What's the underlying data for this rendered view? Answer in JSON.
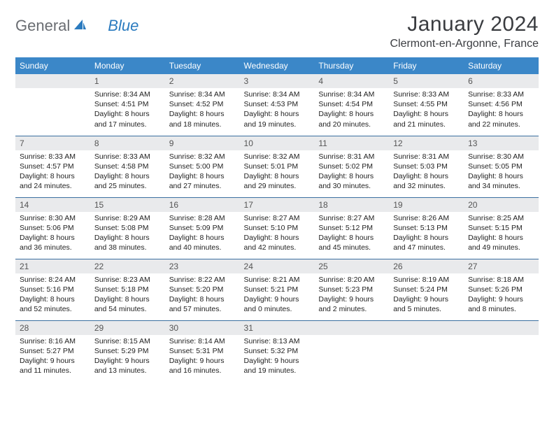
{
  "logo": {
    "word1": "General",
    "word2": "Blue"
  },
  "title": "January 2024",
  "location": "Clermont-en-Argonne, France",
  "colors": {
    "header_bg": "#3b87c8",
    "header_fg": "#ffffff",
    "daynum_bg": "#e9eaec",
    "row_border": "#3b6fa0",
    "logo_gray": "#6a6d72",
    "logo_blue": "#2b7bbf"
  },
  "day_headers": [
    "Sunday",
    "Monday",
    "Tuesday",
    "Wednesday",
    "Thursday",
    "Friday",
    "Saturday"
  ],
  "weeks": [
    [
      {
        "num": "",
        "lines": []
      },
      {
        "num": "1",
        "lines": [
          "Sunrise: 8:34 AM",
          "Sunset: 4:51 PM",
          "Daylight: 8 hours",
          "and 17 minutes."
        ]
      },
      {
        "num": "2",
        "lines": [
          "Sunrise: 8:34 AM",
          "Sunset: 4:52 PM",
          "Daylight: 8 hours",
          "and 18 minutes."
        ]
      },
      {
        "num": "3",
        "lines": [
          "Sunrise: 8:34 AM",
          "Sunset: 4:53 PM",
          "Daylight: 8 hours",
          "and 19 minutes."
        ]
      },
      {
        "num": "4",
        "lines": [
          "Sunrise: 8:34 AM",
          "Sunset: 4:54 PM",
          "Daylight: 8 hours",
          "and 20 minutes."
        ]
      },
      {
        "num": "5",
        "lines": [
          "Sunrise: 8:33 AM",
          "Sunset: 4:55 PM",
          "Daylight: 8 hours",
          "and 21 minutes."
        ]
      },
      {
        "num": "6",
        "lines": [
          "Sunrise: 8:33 AM",
          "Sunset: 4:56 PM",
          "Daylight: 8 hours",
          "and 22 minutes."
        ]
      }
    ],
    [
      {
        "num": "7",
        "lines": [
          "Sunrise: 8:33 AM",
          "Sunset: 4:57 PM",
          "Daylight: 8 hours",
          "and 24 minutes."
        ]
      },
      {
        "num": "8",
        "lines": [
          "Sunrise: 8:33 AM",
          "Sunset: 4:58 PM",
          "Daylight: 8 hours",
          "and 25 minutes."
        ]
      },
      {
        "num": "9",
        "lines": [
          "Sunrise: 8:32 AM",
          "Sunset: 5:00 PM",
          "Daylight: 8 hours",
          "and 27 minutes."
        ]
      },
      {
        "num": "10",
        "lines": [
          "Sunrise: 8:32 AM",
          "Sunset: 5:01 PM",
          "Daylight: 8 hours",
          "and 29 minutes."
        ]
      },
      {
        "num": "11",
        "lines": [
          "Sunrise: 8:31 AM",
          "Sunset: 5:02 PM",
          "Daylight: 8 hours",
          "and 30 minutes."
        ]
      },
      {
        "num": "12",
        "lines": [
          "Sunrise: 8:31 AM",
          "Sunset: 5:03 PM",
          "Daylight: 8 hours",
          "and 32 minutes."
        ]
      },
      {
        "num": "13",
        "lines": [
          "Sunrise: 8:30 AM",
          "Sunset: 5:05 PM",
          "Daylight: 8 hours",
          "and 34 minutes."
        ]
      }
    ],
    [
      {
        "num": "14",
        "lines": [
          "Sunrise: 8:30 AM",
          "Sunset: 5:06 PM",
          "Daylight: 8 hours",
          "and 36 minutes."
        ]
      },
      {
        "num": "15",
        "lines": [
          "Sunrise: 8:29 AM",
          "Sunset: 5:08 PM",
          "Daylight: 8 hours",
          "and 38 minutes."
        ]
      },
      {
        "num": "16",
        "lines": [
          "Sunrise: 8:28 AM",
          "Sunset: 5:09 PM",
          "Daylight: 8 hours",
          "and 40 minutes."
        ]
      },
      {
        "num": "17",
        "lines": [
          "Sunrise: 8:27 AM",
          "Sunset: 5:10 PM",
          "Daylight: 8 hours",
          "and 42 minutes."
        ]
      },
      {
        "num": "18",
        "lines": [
          "Sunrise: 8:27 AM",
          "Sunset: 5:12 PM",
          "Daylight: 8 hours",
          "and 45 minutes."
        ]
      },
      {
        "num": "19",
        "lines": [
          "Sunrise: 8:26 AM",
          "Sunset: 5:13 PM",
          "Daylight: 8 hours",
          "and 47 minutes."
        ]
      },
      {
        "num": "20",
        "lines": [
          "Sunrise: 8:25 AM",
          "Sunset: 5:15 PM",
          "Daylight: 8 hours",
          "and 49 minutes."
        ]
      }
    ],
    [
      {
        "num": "21",
        "lines": [
          "Sunrise: 8:24 AM",
          "Sunset: 5:16 PM",
          "Daylight: 8 hours",
          "and 52 minutes."
        ]
      },
      {
        "num": "22",
        "lines": [
          "Sunrise: 8:23 AM",
          "Sunset: 5:18 PM",
          "Daylight: 8 hours",
          "and 54 minutes."
        ]
      },
      {
        "num": "23",
        "lines": [
          "Sunrise: 8:22 AM",
          "Sunset: 5:20 PM",
          "Daylight: 8 hours",
          "and 57 minutes."
        ]
      },
      {
        "num": "24",
        "lines": [
          "Sunrise: 8:21 AM",
          "Sunset: 5:21 PM",
          "Daylight: 9 hours",
          "and 0 minutes."
        ]
      },
      {
        "num": "25",
        "lines": [
          "Sunrise: 8:20 AM",
          "Sunset: 5:23 PM",
          "Daylight: 9 hours",
          "and 2 minutes."
        ]
      },
      {
        "num": "26",
        "lines": [
          "Sunrise: 8:19 AM",
          "Sunset: 5:24 PM",
          "Daylight: 9 hours",
          "and 5 minutes."
        ]
      },
      {
        "num": "27",
        "lines": [
          "Sunrise: 8:18 AM",
          "Sunset: 5:26 PM",
          "Daylight: 9 hours",
          "and 8 minutes."
        ]
      }
    ],
    [
      {
        "num": "28",
        "lines": [
          "Sunrise: 8:16 AM",
          "Sunset: 5:27 PM",
          "Daylight: 9 hours",
          "and 11 minutes."
        ]
      },
      {
        "num": "29",
        "lines": [
          "Sunrise: 8:15 AM",
          "Sunset: 5:29 PM",
          "Daylight: 9 hours",
          "and 13 minutes."
        ]
      },
      {
        "num": "30",
        "lines": [
          "Sunrise: 8:14 AM",
          "Sunset: 5:31 PM",
          "Daylight: 9 hours",
          "and 16 minutes."
        ]
      },
      {
        "num": "31",
        "lines": [
          "Sunrise: 8:13 AM",
          "Sunset: 5:32 PM",
          "Daylight: 9 hours",
          "and 19 minutes."
        ]
      },
      {
        "num": "",
        "lines": []
      },
      {
        "num": "",
        "lines": []
      },
      {
        "num": "",
        "lines": []
      }
    ]
  ]
}
